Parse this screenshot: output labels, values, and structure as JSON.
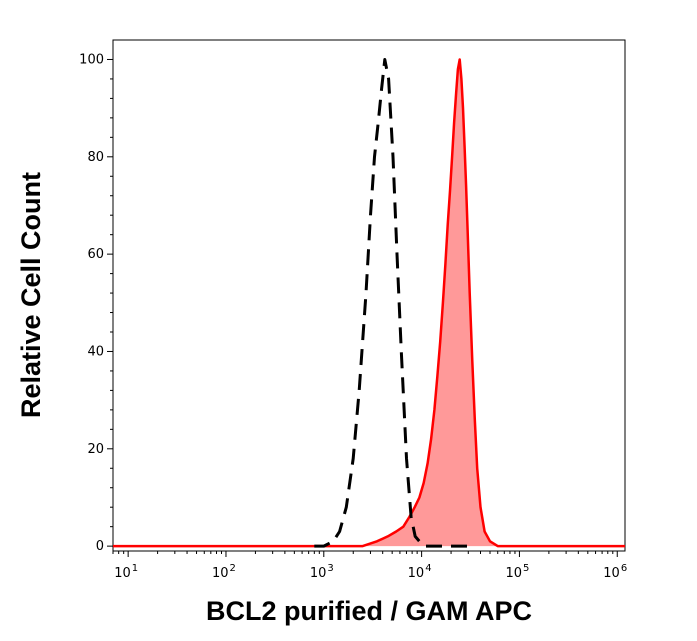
{
  "chart_data": {
    "type": "area",
    "title": "",
    "xlabel": "BCL2 purified / GAM APC",
    "ylabel": "Relative Cell Count",
    "xscale": "log",
    "xlim": [
      7,
      1200000
    ],
    "ylim": [
      -1,
      104
    ],
    "xticks": [
      {
        "value": 10,
        "base": "10",
        "exp": "1"
      },
      {
        "value": 100,
        "base": "10",
        "exp": "2"
      },
      {
        "value": 1000,
        "base": "10",
        "exp": "3"
      },
      {
        "value": 10000,
        "base": "10",
        "exp": "4"
      },
      {
        "value": 100000,
        "base": "10",
        "exp": "5"
      },
      {
        "value": 1000000,
        "base": "10",
        "exp": "6"
      }
    ],
    "yticks": [
      {
        "value": 0,
        "label": "0"
      },
      {
        "value": 20,
        "label": "20"
      },
      {
        "value": 40,
        "label": "40"
      },
      {
        "value": 60,
        "label": "60"
      },
      {
        "value": 80,
        "label": "80"
      },
      {
        "value": 100,
        "label": "100"
      }
    ],
    "grid": false,
    "legend": "none",
    "series": [
      {
        "style": "dashed",
        "color": "#000000",
        "fill": "none",
        "x": [
          800,
          1000,
          1250,
          1450,
          1700,
          2000,
          2300,
          2700,
          3000,
          3300,
          3600,
          3900,
          4200,
          4600,
          5100,
          5600,
          6200,
          7000,
          7800,
          8600,
          9500,
          10500,
          13000,
          17000,
          25000,
          35000
        ],
        "y": [
          0,
          0,
          1,
          3,
          8,
          18,
          32,
          52,
          68,
          80,
          87,
          94,
          100,
          96,
          80,
          60,
          40,
          18,
          6,
          2,
          1,
          0,
          0,
          0,
          0,
          0
        ]
      },
      {
        "style": "solid",
        "color": "#ff0000",
        "fill": "#ff9999",
        "x": [
          7,
          100,
          1000,
          2500,
          3500,
          4500,
          5500,
          6500,
          7500,
          8500,
          9500,
          10500,
          11500,
          12500,
          13500,
          14500,
          15500,
          16500,
          17500,
          18500,
          19500,
          20500,
          21500,
          22500,
          23500,
          24500,
          25500,
          26500,
          27500,
          28500,
          29500,
          31000,
          33000,
          35000,
          37000,
          40000,
          44000,
          50000,
          60000,
          80000,
          200000,
          1200000
        ],
        "y": [
          0,
          0,
          0,
          0,
          1,
          2,
          3,
          4,
          6,
          8,
          10,
          13,
          17,
          22,
          28,
          35,
          42,
          50,
          58,
          66,
          73,
          80,
          87,
          93,
          98,
          100,
          96,
          90,
          82,
          74,
          65,
          52,
          38,
          26,
          16,
          8,
          3,
          1,
          0,
          0,
          0,
          0
        ]
      }
    ]
  }
}
